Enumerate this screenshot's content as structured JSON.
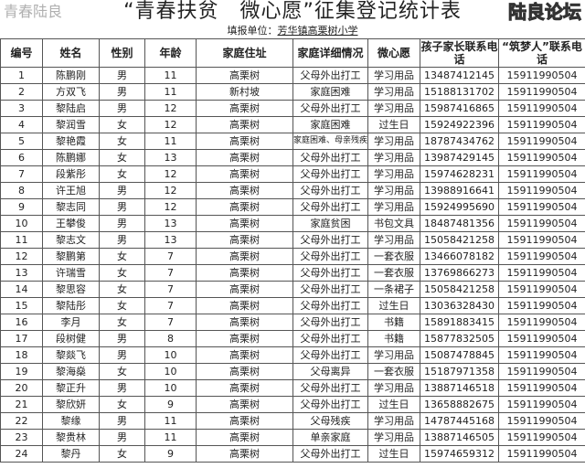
{
  "title": "“青春扶贫　微心愿”征集登记统计表",
  "subtitle_label": "填报单位：",
  "subtitle_value": "芳华镇高栗树小学",
  "columns": [
    "编号",
    "姓名",
    "性别",
    "年龄",
    "家庭住址",
    "家庭详细情况",
    "微心愿",
    "孩子家长联系电话",
    "“筑梦人”联系电话"
  ],
  "rows": [
    [
      "1",
      "陈鹏刚",
      "男",
      "11",
      "高栗树",
      "父母外出打工",
      "学习用品",
      "13487412145",
      "15911990504"
    ],
    [
      "2",
      "方双飞",
      "男",
      "11",
      "新村坡",
      "家庭困难",
      "学习用品",
      "15188131702",
      "15911990504"
    ],
    [
      "3",
      "黎陆启",
      "男",
      "12",
      "高栗树",
      "父母外出打工",
      "学习用品",
      "15987416865",
      "15911990504"
    ],
    [
      "4",
      "黎润雪",
      "女",
      "12",
      "高栗树",
      "家庭困难",
      "过生日",
      "15924922396",
      "15911990504"
    ],
    [
      "5",
      "黎艳霞",
      "女",
      "11",
      "高栗树",
      "家庭困难、母亲残疾",
      "学习用品",
      "18787434762",
      "15911990504"
    ],
    [
      "6",
      "陈鹏娜",
      "女",
      "13",
      "高栗树",
      "父母外出打工",
      "学习用品",
      "13987429145",
      "15911990504"
    ],
    [
      "7",
      "段紫彤",
      "女",
      "12",
      "高栗树",
      "父母外出打工",
      "学习用品",
      "15974628231",
      "15911990504"
    ],
    [
      "8",
      "许王旭",
      "男",
      "12",
      "高栗树",
      "父母外出打工",
      "学习用品",
      "13988916641",
      "15911990504"
    ],
    [
      "9",
      "黎志同",
      "男",
      "12",
      "高栗树",
      "父母外出打工",
      "学习用品",
      "15924995690",
      "15911990504"
    ],
    [
      "10",
      "王攀俊",
      "男",
      "13",
      "高栗树",
      "家庭贫困",
      "书包文具",
      "18487481356",
      "15911990504"
    ],
    [
      "11",
      "黎志文",
      "男",
      "13",
      "高栗树",
      "父母外出打工",
      "学习用品",
      "15058421258",
      "15911990504"
    ],
    [
      "12",
      "黎鹏第",
      "女",
      "7",
      "高栗树",
      "父母外出打工",
      "一套衣服",
      "13466078182",
      "15911990504"
    ],
    [
      "13",
      "许瑞雪",
      "女",
      "7",
      "高栗树",
      "父母外出打工",
      "一套衣服",
      "13769866273",
      "15911990504"
    ],
    [
      "14",
      "黎思容",
      "女",
      "7",
      "高栗树",
      "父母外出打工",
      "一条裙子",
      "15058421258",
      "15911990504"
    ],
    [
      "15",
      "黎陆彤",
      "女",
      "7",
      "高栗树",
      "父母外出打工",
      "过生日",
      "13036328430",
      "15911990504"
    ],
    [
      "16",
      "李月",
      "女",
      "7",
      "高栗树",
      "父母外出打工",
      "书籍",
      "15891883415",
      "15911990504"
    ],
    [
      "17",
      "段树健",
      "男",
      "8",
      "高栗树",
      "父母外出打工",
      "书籍",
      "15877832505",
      "15911990504"
    ],
    [
      "18",
      "黎燚飞",
      "男",
      "10",
      "高栗树",
      "父母外出打工",
      "学习用品",
      "15087478845",
      "15911990504"
    ],
    [
      "19",
      "黎海燊",
      "女",
      "10",
      "高栗树",
      "父母离异",
      "一套衣服",
      "15187971358",
      "15911990504"
    ],
    [
      "20",
      "黎正升",
      "男",
      "10",
      "高栗树",
      "父母外出打工",
      "学习用品",
      "13887146518",
      "15911990504"
    ],
    [
      "21",
      "黎欣妍",
      "女",
      "9",
      "高栗树",
      "父母外出打工",
      "过生日",
      "13658882675",
      "15911990504"
    ],
    [
      "22",
      "黎缘",
      "男",
      "11",
      "高栗树",
      "父母残疾",
      "学习用品",
      "14787445168",
      "15911990504"
    ],
    [
      "23",
      "黎贵林",
      "男",
      "11",
      "高栗树",
      "单亲家庭",
      "学习用品",
      "13887146505",
      "15911990504"
    ],
    [
      "24",
      "黎丹",
      "女",
      "9",
      "高栗树",
      "父母外出打工",
      "过生日",
      "15974659312",
      "15911990504"
    ]
  ],
  "watermarks": [
    "青春陆良",
    "陆良论坛"
  ]
}
